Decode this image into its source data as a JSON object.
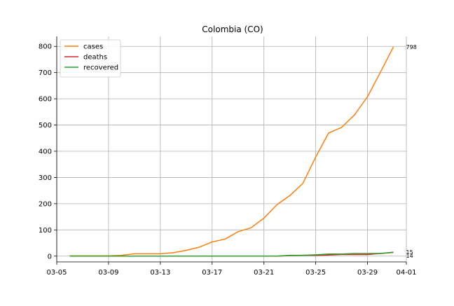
{
  "chart_data": {
    "type": "line",
    "title": "Colombia (CO)",
    "xlabel": "",
    "ylabel": "",
    "x_axis": {
      "kind": "date",
      "lim": [
        "2020-03-05",
        "2020-04-01"
      ],
      "ticks": [
        {
          "value": "2020-03-05",
          "label": "03-05"
        },
        {
          "value": "2020-03-09",
          "label": "03-09"
        },
        {
          "value": "2020-03-13",
          "label": "03-13"
        },
        {
          "value": "2020-03-17",
          "label": "03-17"
        },
        {
          "value": "2020-03-21",
          "label": "03-21"
        },
        {
          "value": "2020-03-25",
          "label": "03-25"
        },
        {
          "value": "2020-03-29",
          "label": "03-29"
        },
        {
          "value": "2020-04-01",
          "label": "04-01"
        }
      ]
    },
    "y_axis": {
      "lim": [
        -22,
        838
      ],
      "ticks": [
        0,
        100,
        200,
        300,
        400,
        500,
        600,
        700,
        800
      ]
    },
    "grid": true,
    "legend": {
      "position": "top-left"
    },
    "x": [
      "2020-03-06",
      "2020-03-07",
      "2020-03-08",
      "2020-03-09",
      "2020-03-10",
      "2020-03-11",
      "2020-03-12",
      "2020-03-13",
      "2020-03-14",
      "2020-03-15",
      "2020-03-16",
      "2020-03-17",
      "2020-03-18",
      "2020-03-19",
      "2020-03-20",
      "2020-03-21",
      "2020-03-22",
      "2020-03-23",
      "2020-03-24",
      "2020-03-25",
      "2020-03-26",
      "2020-03-27",
      "2020-03-28",
      "2020-03-29",
      "2020-03-30",
      "2020-03-31"
    ],
    "series": [
      {
        "name": "cases",
        "color": "#ff7f0e",
        "values": [
          1,
          1,
          1,
          1,
          3,
          9,
          9,
          9,
          13,
          22,
          34,
          54,
          65,
          93,
          108,
          145,
          196,
          231,
          277,
          378,
          470,
          491,
          539,
          608,
          702,
          798
        ],
        "end_label": "798"
      },
      {
        "name": "deaths",
        "color": "#d62728",
        "values": [
          0,
          0,
          0,
          0,
          0,
          0,
          0,
          0,
          0,
          0,
          0,
          0,
          0,
          0,
          0,
          0,
          0,
          2,
          3,
          3,
          4,
          6,
          6,
          6,
          10,
          14
        ],
        "end_label": "14"
      },
      {
        "name": "recovered",
        "color": "#2ca02c",
        "values": [
          0,
          0,
          0,
          0,
          0,
          0,
          0,
          0,
          0,
          0,
          0,
          0,
          0,
          0,
          0,
          0,
          0,
          3,
          3,
          5,
          8,
          8,
          10,
          10,
          10,
          15
        ],
        "end_label": "15"
      }
    ]
  }
}
